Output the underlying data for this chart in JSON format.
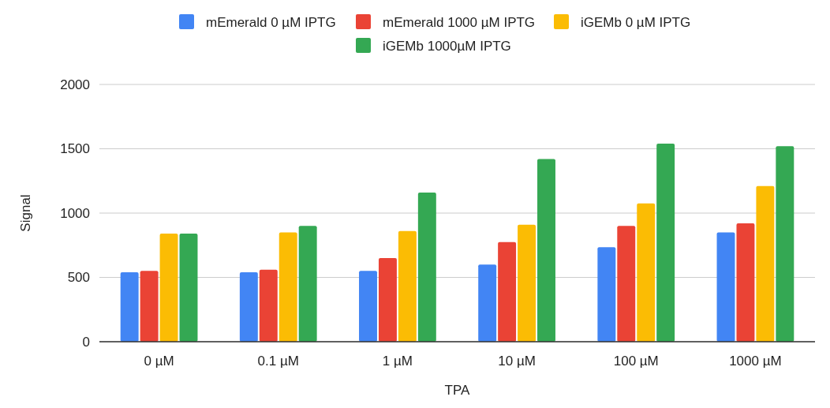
{
  "chart_data": {
    "type": "bar",
    "xlabel": "TPA",
    "ylabel": "Signal",
    "categories": [
      "0 µM",
      "0.1 µM",
      "1 µM",
      "10 µM",
      "100 µM",
      "1000 µM"
    ],
    "series": [
      {
        "name": "mEmerald 0 µM IPTG",
        "color": "#4285f4",
        "values": [
          540,
          540,
          550,
          600,
          735,
          850
        ]
      },
      {
        "name": "mEmerald 1000 µM IPTG",
        "color": "#ea4335",
        "values": [
          550,
          560,
          650,
          775,
          900,
          920
        ]
      },
      {
        "name": "iGEMb 0 µM IPTG",
        "color": "#fbbc04",
        "values": [
          840,
          850,
          860,
          910,
          1075,
          1210
        ]
      },
      {
        "name": "iGEMb 1000µM  IPTG",
        "color": "#34a853",
        "values": [
          840,
          900,
          1160,
          1420,
          1540,
          1520
        ]
      }
    ],
    "ylim": [
      0,
      2000
    ],
    "yticks": [
      0,
      500,
      1000,
      1500,
      2000
    ],
    "grid": "y",
    "legend": "top"
  }
}
